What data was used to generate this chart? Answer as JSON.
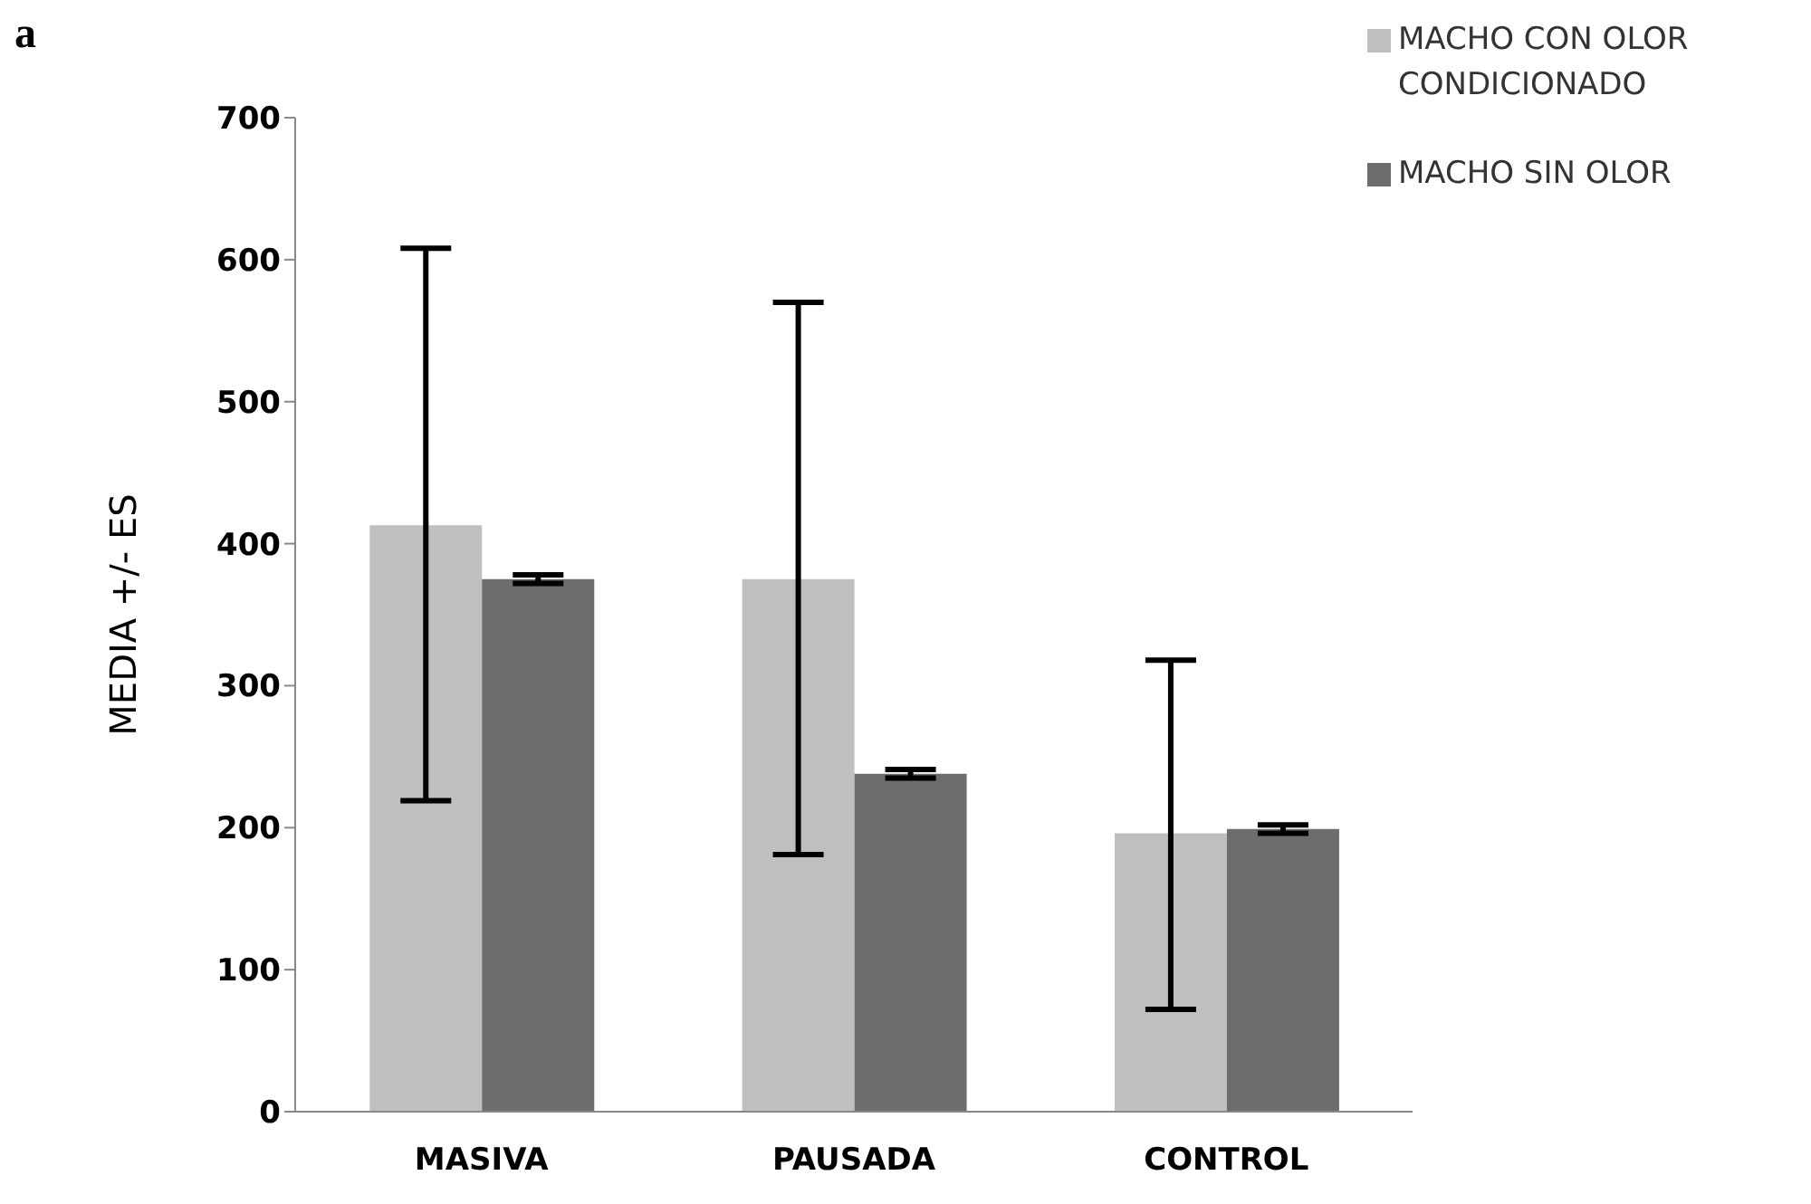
{
  "chart_data": {
    "type": "bar",
    "ylabel": "MEDIA +/- ES",
    "annotations": [
      "a"
    ],
    "categories": [
      "MASIVA",
      "PAUSADA",
      "CONTROL"
    ],
    "series": [
      {
        "name": "MACHO CON OLOR CONDICIONADO",
        "color": "#bfbfbf",
        "values": [
          413,
          375,
          196
        ],
        "errors": [
          [
            219,
            608
          ],
          [
            181,
            570
          ],
          [
            72,
            318
          ]
        ]
      },
      {
        "name": "MACHO SIN OLOR",
        "color": "#6d6d6d",
        "values": [
          375,
          238,
          199
        ],
        "errors": [
          3,
          3,
          3
        ]
      }
    ],
    "ylim": [
      0,
      700
    ],
    "yticks": [
      0,
      100,
      200,
      300,
      400,
      500,
      600,
      700
    ],
    "grid": false,
    "legend": "top right"
  }
}
